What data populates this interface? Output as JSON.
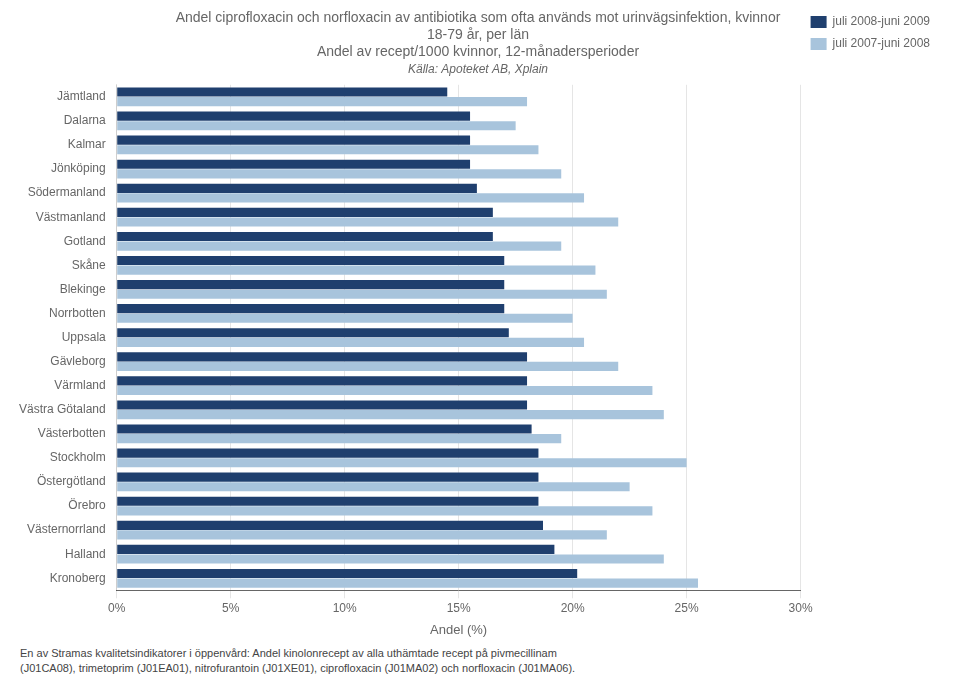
{
  "chart_data": {
    "type": "bar",
    "orientation": "horizontal",
    "title": [
      "Andel ciprofloxacin och norfloxacin av antibiotika som ofta används mot urinvägsinfektion, kvinnor",
      "18-79 år, per län",
      "Andel av recept/1000 kvinnor, 12-månadersperioder"
    ],
    "subtitle": "Källa: Apoteket AB, Xplain",
    "xlabel": "Andel (%)",
    "annotations": [
      "En av Stramas kvalitetsindikatorer i öppenvård: Andel kinolonrecept av alla uthämtade recept på pivmecillinam",
      "(J01CA08), trimetoprim (J01EA01), nitrofurantoin (J01XE01), ciprofloxacin (J01MA02) och norfloxacin (J01MA06)."
    ],
    "categories": [
      "Kronoberg",
      "Halland",
      "Västernorrland",
      "Örebro",
      "Östergötland",
      "Stockholm",
      "Västerbotten",
      "Västra Götaland",
      "Värmland",
      "Gävleborg",
      "Uppsala",
      "Norrbotten",
      "Blekinge",
      "Skåne",
      "Gotland",
      "Västmanland",
      "Södermanland",
      "Jönköping",
      "Kalmar",
      "Dalarna",
      "Jämtland"
    ],
    "series": [
      {
        "name": "juli 2008-juni 2009",
        "color": "#1F3F6E",
        "values": [
          20.2,
          19.2,
          18.7,
          18.5,
          18.5,
          18.5,
          18.2,
          18.0,
          18.0,
          18.0,
          17.2,
          17.0,
          17.0,
          17.0,
          16.5,
          16.5,
          15.8,
          15.5,
          15.5,
          15.5,
          14.5
        ]
      },
      {
        "name": "juli 2007-juni 2008",
        "color": "#A8C4DC",
        "values": [
          25.5,
          24.0,
          21.5,
          23.5,
          22.5,
          25.0,
          19.5,
          24.0,
          23.5,
          22.0,
          20.5,
          20.0,
          21.5,
          21.0,
          19.5,
          22.0,
          20.5,
          19.5,
          18.5,
          17.5,
          18.0
        ]
      }
    ],
    "xlim": [
      0,
      30
    ],
    "xticks": [
      {
        "value": 0,
        "label": "0%"
      },
      {
        "value": 5,
        "label": "5%"
      },
      {
        "value": 10,
        "label": "10%"
      },
      {
        "value": 15,
        "label": "15%"
      },
      {
        "value": 20,
        "label": "20%"
      },
      {
        "value": 25,
        "label": "25%"
      },
      {
        "value": 30,
        "label": "30%"
      }
    ],
    "grid": true,
    "legend": "right"
  }
}
